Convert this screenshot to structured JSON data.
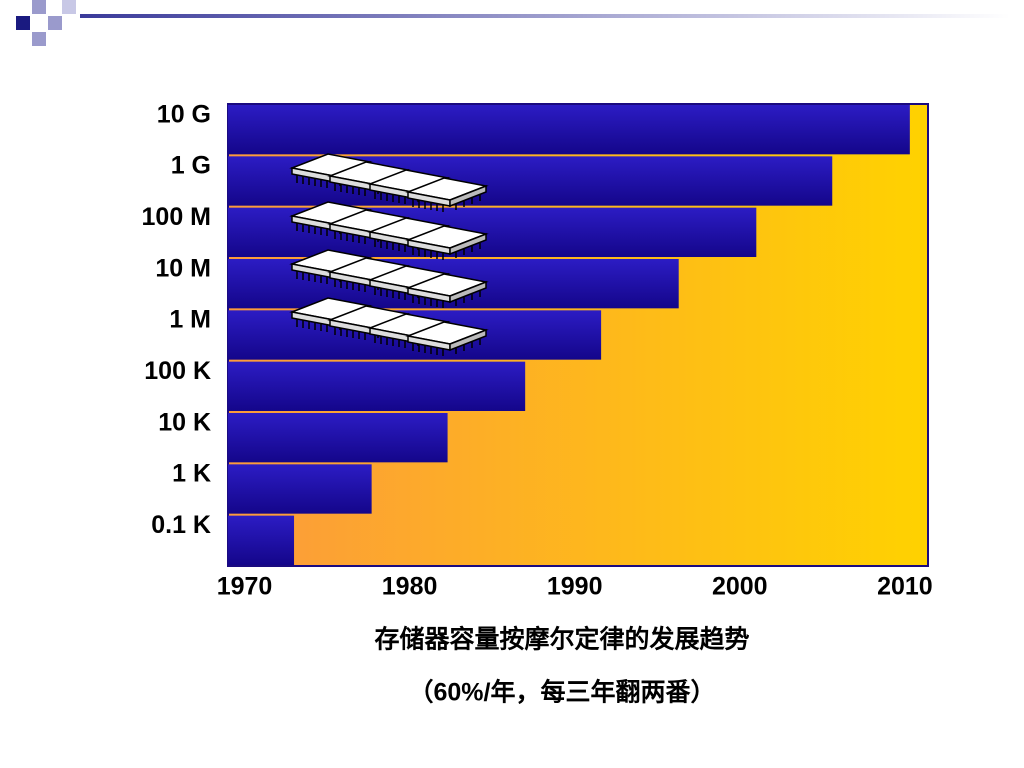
{
  "chart_data": {
    "type": "hbar",
    "categories": [
      "0.1 K",
      "1 K",
      "10 K",
      "100 K",
      "1 M",
      "10 M",
      "100 M",
      "1 G",
      "10 G"
    ],
    "values": [
      1973,
      1977.7,
      1982.3,
      1987,
      1991.6,
      1996.3,
      2001,
      2005.6,
      2010.3
    ],
    "xlim": [
      1969,
      2011.4
    ],
    "xticks": [
      1970,
      1980,
      1990,
      2000,
      2010
    ],
    "color": "#2012a8",
    "caption": "存储器容量按摩尔定律的发展趋势",
    "subcaption": "（60%/年，每三年翻两番）"
  }
}
